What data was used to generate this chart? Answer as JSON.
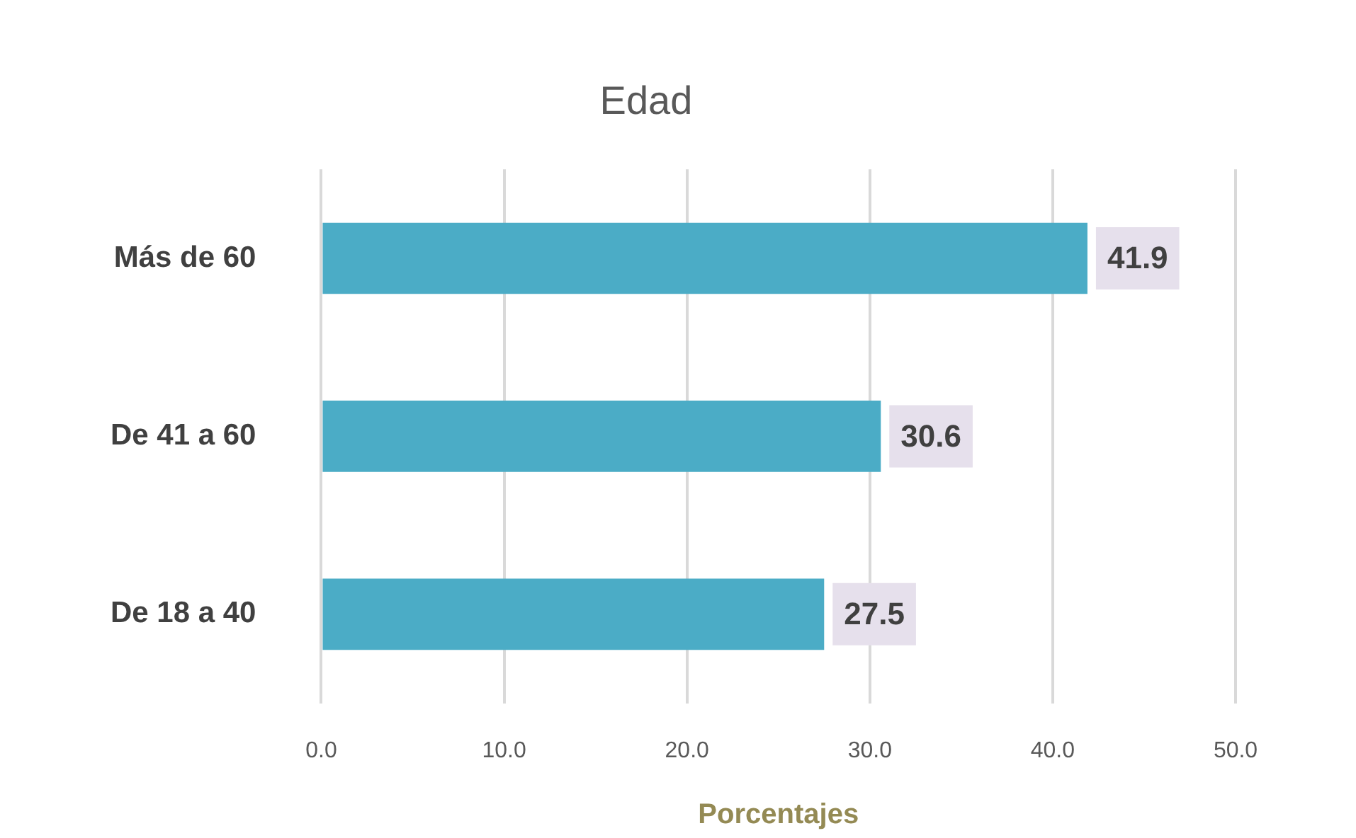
{
  "chart_data": {
    "type": "bar",
    "orientation": "horizontal",
    "title": "Edad",
    "xlabel": "Porcentajes",
    "categories": [
      "Más de 60",
      "De 41 a 60",
      "De 18 a 40"
    ],
    "values": [
      41.9,
      30.6,
      27.5
    ],
    "color": "#4bacc6",
    "xlim": [
      0,
      50
    ],
    "xticks": [
      {
        "value": 0,
        "label": "0.0"
      },
      {
        "value": 10,
        "label": "10.0"
      },
      {
        "value": 20,
        "label": "20.0"
      },
      {
        "value": 30,
        "label": "30.0"
      },
      {
        "value": 40,
        "label": "40.0"
      },
      {
        "value": 50,
        "label": "50.0"
      }
    ],
    "grid": "x",
    "data_labels": true,
    "legend": false
  }
}
